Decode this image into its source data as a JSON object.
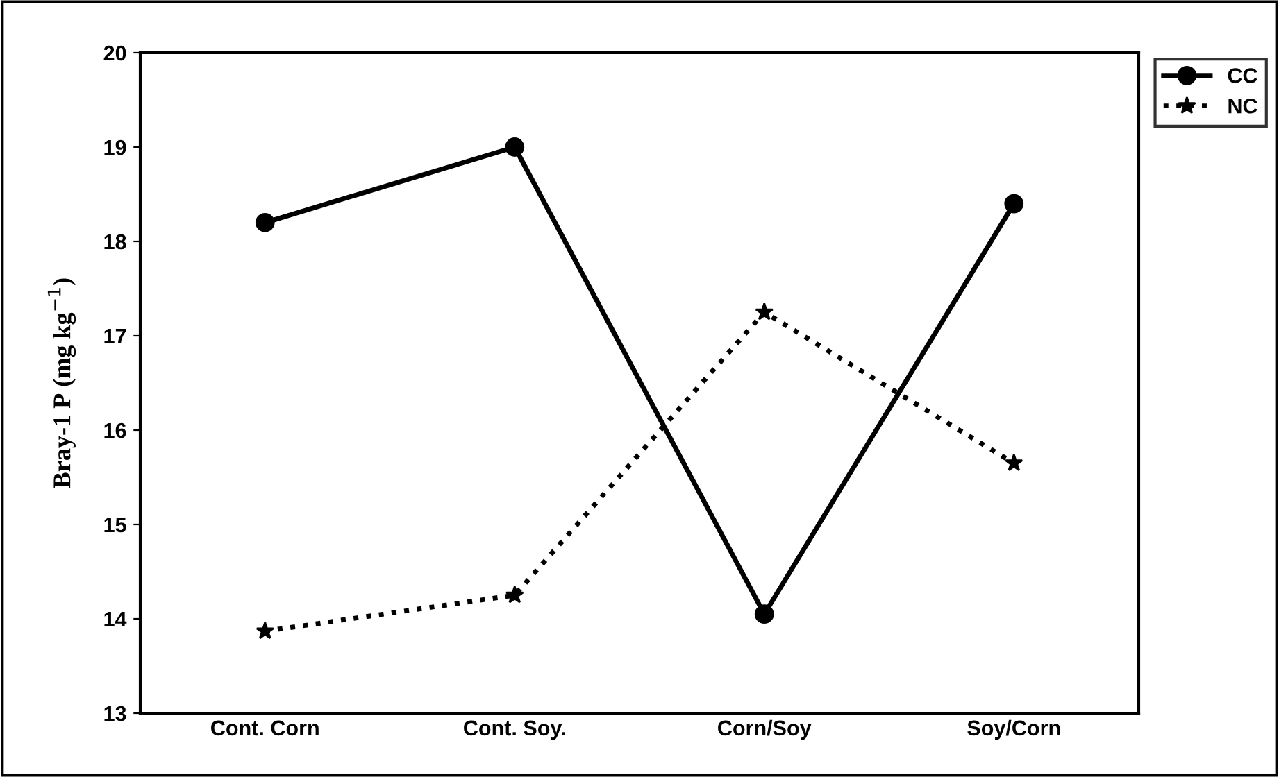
{
  "chart_data": {
    "type": "line",
    "ylabel": "Bray-1 P (mg kg$^{−1}$)",
    "categories": [
      "Cont. Corn",
      "Cont. Soy.",
      "Corn/Soy",
      "Soy/Corn"
    ],
    "series": [
      {
        "name": "CC",
        "color": "#000000",
        "values": [
          18.2,
          19.0,
          14.05,
          18.4
        ],
        "marker": "circle",
        "line_style": "solid"
      },
      {
        "name": "NC",
        "color": "#000000",
        "values": [
          13.87,
          14.25,
          17.25,
          15.65
        ],
        "marker": "star",
        "line_style": "dotted"
      }
    ],
    "ylim": [
      13,
      20
    ],
    "yticks": [
      13,
      14,
      15,
      16,
      17,
      18,
      19,
      20
    ],
    "grid": false,
    "legend": "top right"
  }
}
